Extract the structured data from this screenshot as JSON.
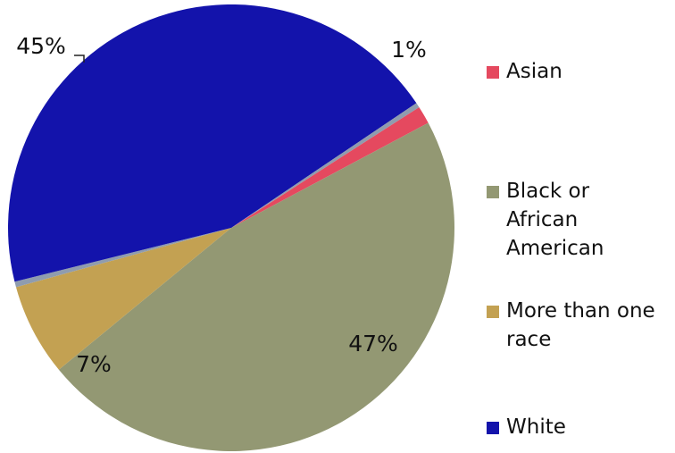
{
  "chart_data": {
    "type": "pie",
    "title": "",
    "slices": [
      {
        "label": "Asian",
        "value": 1.3,
        "display": "1%",
        "color": "#e5495f"
      },
      {
        "label": "Black or African American",
        "value": 47,
        "display": "47%",
        "color": "#939873"
      },
      {
        "label": "More than one race",
        "value": 6.7,
        "display": "7%",
        "color": "#c3a152"
      },
      {
        "label": "",
        "value": 0.4,
        "display": "",
        "color": "#8f9cae"
      },
      {
        "label": "White",
        "value": 44.6,
        "display": "45%",
        "color": "#1313ab"
      },
      {
        "label": "",
        "value": 0.35,
        "display": "",
        "color": "#8f9cae"
      }
    ],
    "legend": {
      "placement": "right",
      "items": [
        {
          "lines": [
            "Asian"
          ],
          "color": "#e5495f"
        },
        {
          "lines": [
            "Black or",
            "African",
            "American"
          ],
          "color": "#939873"
        },
        {
          "lines": [
            "More than one",
            "race"
          ],
          "color": "#c3a152"
        },
        {
          "lines": [
            "White"
          ],
          "color": "#1313ab"
        }
      ]
    }
  }
}
